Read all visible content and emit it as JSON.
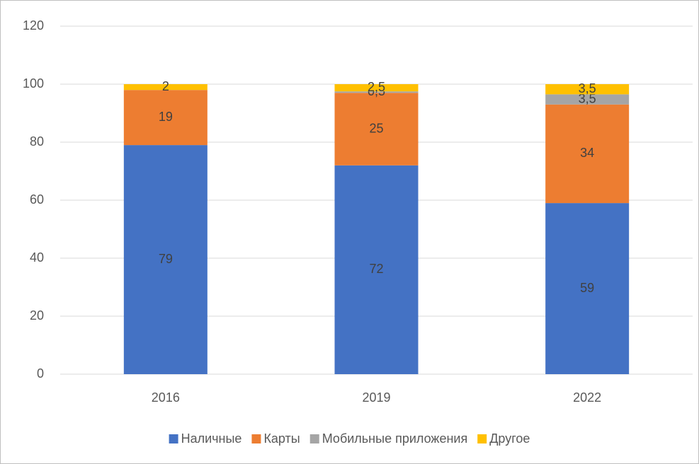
{
  "chart_data": {
    "type": "stacked_bar",
    "categories": [
      "2016",
      "2019",
      "2022"
    ],
    "series": [
      {
        "name": "Наличные",
        "color": "#4472c4",
        "values": [
          79,
          72,
          59
        ]
      },
      {
        "name": "Карты",
        "color": "#ed7d31",
        "values": [
          19,
          25,
          34
        ]
      },
      {
        "name": "Мобильные приложения",
        "color": "#a5a5a5",
        "values": [
          null,
          0.5,
          3.5
        ],
        "value_labels": [
          null,
          "0,5",
          "3,5"
        ]
      },
      {
        "name": "Другое",
        "color": "#ffc000",
        "values": [
          2,
          2.5,
          3.5
        ],
        "value_labels": [
          "2",
          "2,5",
          "3,5"
        ]
      }
    ],
    "ylim": [
      0,
      120
    ],
    "yticks": [
      0,
      20,
      40,
      60,
      80,
      100,
      120
    ],
    "grid": true,
    "legend": "bottom"
  }
}
